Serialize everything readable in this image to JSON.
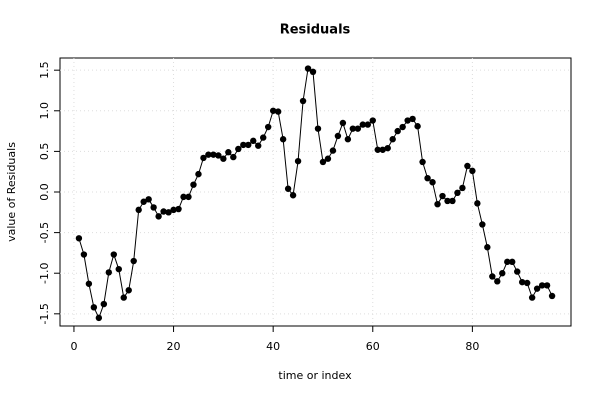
{
  "chart_data": {
    "type": "line",
    "title": "Residuals",
    "xlabel": "time or index",
    "ylabel": "value of Residuals",
    "x": [
      1,
      2,
      3,
      4,
      5,
      6,
      7,
      8,
      9,
      10,
      11,
      12,
      13,
      14,
      15,
      16,
      17,
      18,
      19,
      20,
      21,
      22,
      23,
      24,
      25,
      26,
      27,
      28,
      29,
      30,
      31,
      32,
      33,
      34,
      35,
      36,
      37,
      38,
      39,
      40,
      41,
      42,
      43,
      44,
      45,
      46,
      47,
      48,
      49,
      50,
      51,
      52,
      53,
      54,
      55,
      56,
      57,
      58,
      59,
      60,
      61,
      62,
      63,
      64,
      65,
      66,
      67,
      68,
      69,
      70,
      71,
      72,
      73,
      74,
      75,
      76,
      77,
      78,
      79,
      80,
      81,
      82,
      83,
      84,
      85,
      86,
      87,
      88,
      89,
      90,
      91,
      92,
      93,
      94,
      95,
      96
    ],
    "values": [
      -0.57,
      -0.77,
      -1.13,
      -1.42,
      -1.55,
      -1.38,
      -0.99,
      -0.77,
      -0.95,
      -1.3,
      -1.21,
      -0.85,
      -0.22,
      -0.12,
      -0.09,
      -0.19,
      -0.3,
      -0.24,
      -0.25,
      -0.22,
      -0.21,
      -0.06,
      -0.06,
      0.09,
      0.22,
      0.42,
      0.46,
      0.46,
      0.45,
      0.41,
      0.49,
      0.43,
      0.53,
      0.58,
      0.58,
      0.63,
      0.57,
      0.67,
      0.8,
      1.0,
      0.99,
      0.65,
      0.04,
      -0.04,
      0.38,
      1.12,
      1.52,
      1.48,
      0.78,
      0.37,
      0.41,
      0.51,
      0.69,
      0.85,
      0.65,
      0.78,
      0.78,
      0.83,
      0.83,
      0.88,
      0.52,
      0.52,
      0.54,
      0.65,
      0.75,
      0.8,
      0.88,
      0.9,
      0.81,
      0.37,
      0.17,
      0.12,
      -0.15,
      -0.05,
      -0.11,
      -0.11,
      -0.01,
      0.05,
      0.32,
      0.26,
      -0.14,
      -0.4,
      -0.68,
      -1.04,
      -1.1,
      -1.0,
      -0.86,
      -0.86,
      -0.98,
      -1.11,
      -1.12,
      -1.3,
      -1.19,
      -1.15,
      -1.15,
      -1.28
    ],
    "color": "#000000",
    "xlim": [
      -2.8,
      99.8
    ],
    "xticks": [
      0,
      20,
      40,
      60,
      80
    ],
    "ylim": [
      -1.65,
      1.65
    ],
    "yticks": [
      {
        "value": -1.5,
        "label": "-1.5"
      },
      {
        "value": -1,
        "label": "-1.0"
      },
      -0.5,
      {
        "value": 0,
        "label": "0.0"
      },
      0.5,
      {
        "value": 1,
        "label": "1.0"
      },
      1.5
    ],
    "grid": true
  }
}
